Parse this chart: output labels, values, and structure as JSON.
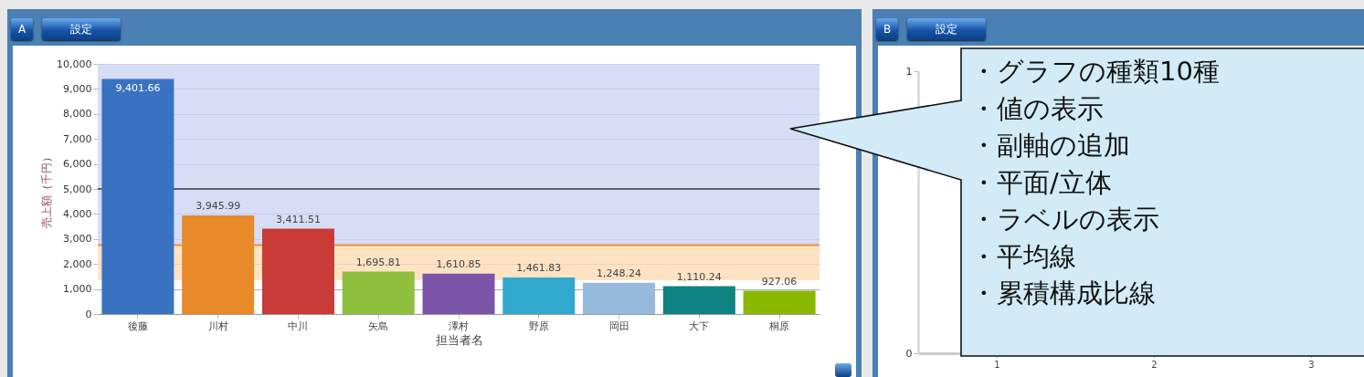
{
  "chart_data": [
    {
      "type": "bar",
      "title": "A",
      "annotations": [
        "設定"
      ],
      "xlabel": "担当者名",
      "ylabel": "売上額（千円）",
      "categories": [
        "後藤",
        "川村",
        "中川",
        "矢島",
        "澤村",
        "野原",
        "岡田",
        "大下",
        "桐原"
      ],
      "values": [
        9401.66,
        3945.99,
        3411.51,
        1695.81,
        1610.85,
        1461.83,
        1248.24,
        1110.24,
        927.06
      ],
      "colors": [
        "#3a72c2",
        "#e8892a",
        "#c83b36",
        "#8fc03e",
        "#7b54a8",
        "#30a9cc",
        "#96badc",
        "#0f8282",
        "#8ab800"
      ],
      "value_labels": [
        "9,401.66",
        "3,945.99",
        "3,411.51",
        "1,695.81",
        "1,610.85",
        "1,461.83",
        "1,248.24",
        "1,110.24",
        "927.06"
      ],
      "ylim": [
        0,
        10000
      ],
      "yticks": [
        {
          "value": 0,
          "label": "0"
        },
        {
          "value": 1000,
          "label": "1,000"
        },
        {
          "value": 2000,
          "label": "2,000"
        },
        {
          "value": 3000,
          "label": "3,000"
        },
        {
          "value": 4000,
          "label": "4,000"
        },
        {
          "value": 5000,
          "label": "5,000"
        },
        {
          "value": 6000,
          "label": "6,000"
        },
        {
          "value": 7000,
          "label": "7,000"
        },
        {
          "value": 8000,
          "label": "8,000"
        },
        {
          "value": 9000,
          "label": "9,000"
        },
        {
          "value": 10000,
          "label": "10,000"
        }
      ],
      "grid": "y",
      "bands": [
        {
          "axis": "y",
          "from": 2757,
          "to": 10000,
          "color": "#cdd5f3"
        },
        {
          "axis": "y",
          "from": 1350,
          "to": 2757,
          "color": "#fddcb5"
        }
      ],
      "ref_lines": [
        {
          "axis": "y",
          "value": 5000,
          "color": "#5a6272"
        },
        {
          "axis": "y",
          "value": 2757,
          "color": "#f0903a"
        }
      ]
    },
    {
      "type": "line",
      "title": "B",
      "annotations": [
        "設定"
      ],
      "categories": [
        "1",
        "2",
        "3"
      ],
      "values": [
        null,
        null,
        null
      ],
      "ylim": [
        0,
        1
      ],
      "yticks": [
        0,
        1
      ]
    },
    {
      "type": "other",
      "annotations": [
        "・グラフの種類10種",
        "・値の表示",
        "・副軸の追加",
        "・平面/立体",
        "・ラベルの表示",
        "・平均線",
        "・累積構成比線"
      ]
    }
  ]
}
